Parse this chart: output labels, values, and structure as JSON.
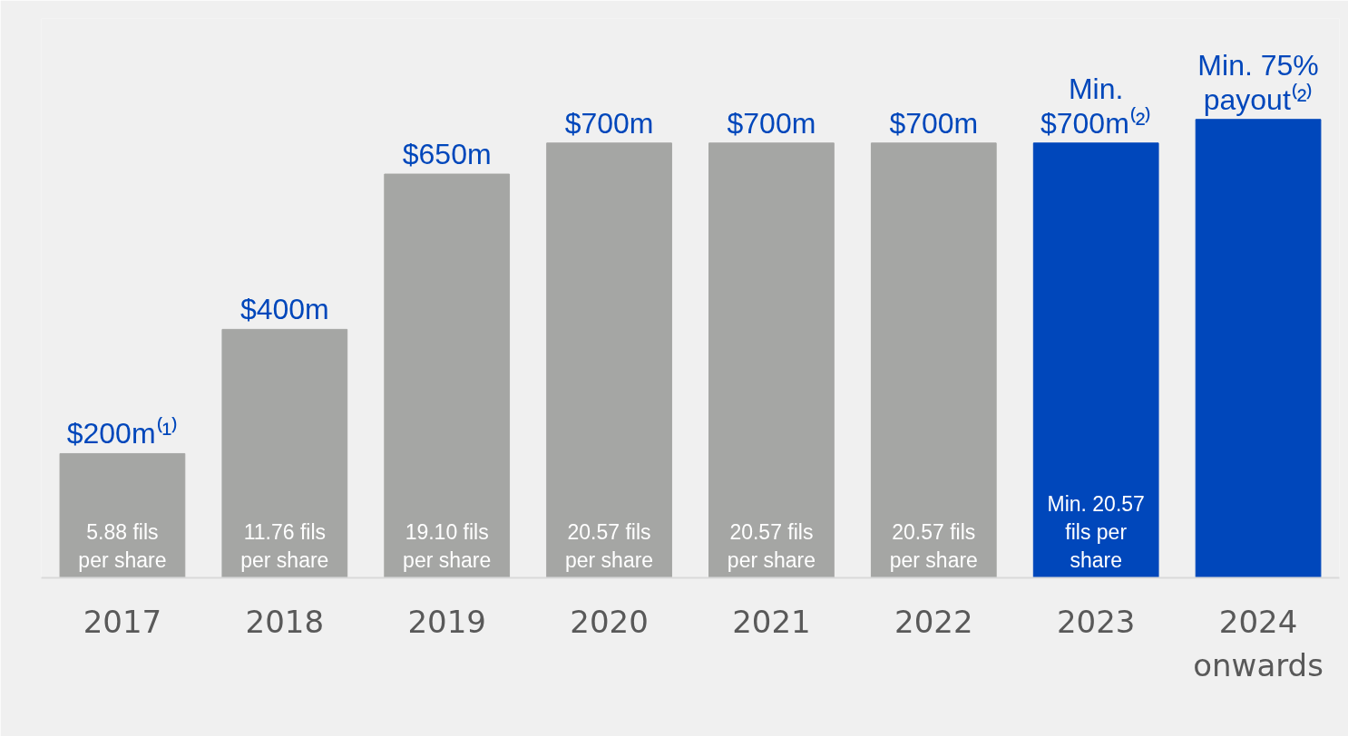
{
  "chart_data": {
    "type": "bar",
    "categories": [
      "2017",
      "2018",
      "2019",
      "2020",
      "2021",
      "2022",
      "2023",
      "2024\nonwards"
    ],
    "values": [
      200,
      400,
      650,
      700,
      700,
      700,
      700,
      738
    ],
    "colors": [
      "#a5a6a4",
      "#a5a6a4",
      "#a5a6a4",
      "#a5a6a4",
      "#a5a6a4",
      "#a5a6a4",
      "#0047bb",
      "#0047bb"
    ],
    "value_labels": [
      "$200m⁽¹⁾",
      "$400m",
      "$650m",
      "$700m",
      "$700m",
      "$700m",
      "Min.\n$700m⁽²⁾",
      null
    ],
    "annotations": [
      "Min. 75%\npayout⁽²⁾",
      "5.88 fils\nper share",
      "11.76 fils\nper share",
      "19.10 fils\nper share",
      "20.57 fils\nper share",
      "20.57 fils\nper share",
      "20.57 fils\nper share",
      "Min. 20.57\nfils per\nshare"
    ],
    "grid": false
  }
}
